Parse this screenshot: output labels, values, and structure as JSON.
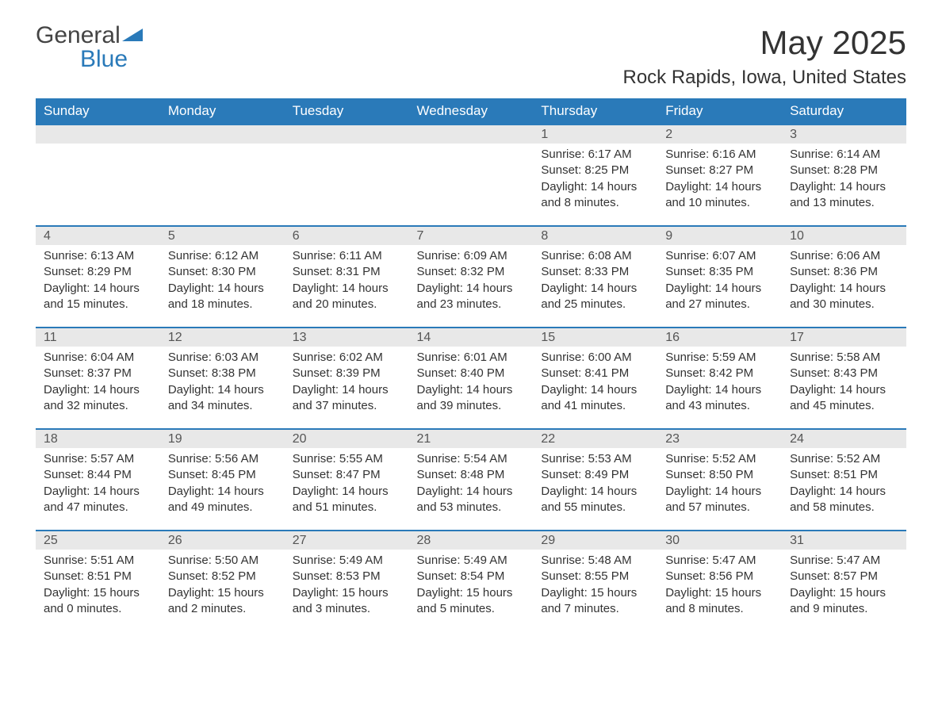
{
  "logo": {
    "word1": "General",
    "word2": "Blue"
  },
  "title": "May 2025",
  "location": "Rock Rapids, Iowa, United States",
  "colors": {
    "header_bg": "#2a7ab9",
    "header_text": "#ffffff",
    "daynum_bg": "#e8e8e8",
    "text": "#333333",
    "logo_blue": "#2a7ab9",
    "row_border": "#2a7ab9",
    "page_bg": "#ffffff"
  },
  "typography": {
    "title_fontsize": 42,
    "location_fontsize": 24,
    "weekday_fontsize": 17,
    "daynum_fontsize": 16,
    "body_fontsize": 15,
    "logo_fontsize": 30
  },
  "weekdays": [
    "Sunday",
    "Monday",
    "Tuesday",
    "Wednesday",
    "Thursday",
    "Friday",
    "Saturday"
  ],
  "labels": {
    "sunrise": "Sunrise",
    "sunset": "Sunset",
    "daylight": "Daylight"
  },
  "weeks": [
    [
      {
        "num": "",
        "empty": true
      },
      {
        "num": "",
        "empty": true
      },
      {
        "num": "",
        "empty": true
      },
      {
        "num": "",
        "empty": true
      },
      {
        "num": "1",
        "sunrise": "6:17 AM",
        "sunset": "8:25 PM",
        "daylight": "14 hours and 8 minutes."
      },
      {
        "num": "2",
        "sunrise": "6:16 AM",
        "sunset": "8:27 PM",
        "daylight": "14 hours and 10 minutes."
      },
      {
        "num": "3",
        "sunrise": "6:14 AM",
        "sunset": "8:28 PM",
        "daylight": "14 hours and 13 minutes."
      }
    ],
    [
      {
        "num": "4",
        "sunrise": "6:13 AM",
        "sunset": "8:29 PM",
        "daylight": "14 hours and 15 minutes."
      },
      {
        "num": "5",
        "sunrise": "6:12 AM",
        "sunset": "8:30 PM",
        "daylight": "14 hours and 18 minutes."
      },
      {
        "num": "6",
        "sunrise": "6:11 AM",
        "sunset": "8:31 PM",
        "daylight": "14 hours and 20 minutes."
      },
      {
        "num": "7",
        "sunrise": "6:09 AM",
        "sunset": "8:32 PM",
        "daylight": "14 hours and 23 minutes."
      },
      {
        "num": "8",
        "sunrise": "6:08 AM",
        "sunset": "8:33 PM",
        "daylight": "14 hours and 25 minutes."
      },
      {
        "num": "9",
        "sunrise": "6:07 AM",
        "sunset": "8:35 PM",
        "daylight": "14 hours and 27 minutes."
      },
      {
        "num": "10",
        "sunrise": "6:06 AM",
        "sunset": "8:36 PM",
        "daylight": "14 hours and 30 minutes."
      }
    ],
    [
      {
        "num": "11",
        "sunrise": "6:04 AM",
        "sunset": "8:37 PM",
        "daylight": "14 hours and 32 minutes."
      },
      {
        "num": "12",
        "sunrise": "6:03 AM",
        "sunset": "8:38 PM",
        "daylight": "14 hours and 34 minutes."
      },
      {
        "num": "13",
        "sunrise": "6:02 AM",
        "sunset": "8:39 PM",
        "daylight": "14 hours and 37 minutes."
      },
      {
        "num": "14",
        "sunrise": "6:01 AM",
        "sunset": "8:40 PM",
        "daylight": "14 hours and 39 minutes."
      },
      {
        "num": "15",
        "sunrise": "6:00 AM",
        "sunset": "8:41 PM",
        "daylight": "14 hours and 41 minutes."
      },
      {
        "num": "16",
        "sunrise": "5:59 AM",
        "sunset": "8:42 PM",
        "daylight": "14 hours and 43 minutes."
      },
      {
        "num": "17",
        "sunrise": "5:58 AM",
        "sunset": "8:43 PM",
        "daylight": "14 hours and 45 minutes."
      }
    ],
    [
      {
        "num": "18",
        "sunrise": "5:57 AM",
        "sunset": "8:44 PM",
        "daylight": "14 hours and 47 minutes."
      },
      {
        "num": "19",
        "sunrise": "5:56 AM",
        "sunset": "8:45 PM",
        "daylight": "14 hours and 49 minutes."
      },
      {
        "num": "20",
        "sunrise": "5:55 AM",
        "sunset": "8:47 PM",
        "daylight": "14 hours and 51 minutes."
      },
      {
        "num": "21",
        "sunrise": "5:54 AM",
        "sunset": "8:48 PM",
        "daylight": "14 hours and 53 minutes."
      },
      {
        "num": "22",
        "sunrise": "5:53 AM",
        "sunset": "8:49 PM",
        "daylight": "14 hours and 55 minutes."
      },
      {
        "num": "23",
        "sunrise": "5:52 AM",
        "sunset": "8:50 PM",
        "daylight": "14 hours and 57 minutes."
      },
      {
        "num": "24",
        "sunrise": "5:52 AM",
        "sunset": "8:51 PM",
        "daylight": "14 hours and 58 minutes."
      }
    ],
    [
      {
        "num": "25",
        "sunrise": "5:51 AM",
        "sunset": "8:51 PM",
        "daylight": "15 hours and 0 minutes."
      },
      {
        "num": "26",
        "sunrise": "5:50 AM",
        "sunset": "8:52 PM",
        "daylight": "15 hours and 2 minutes."
      },
      {
        "num": "27",
        "sunrise": "5:49 AM",
        "sunset": "8:53 PM",
        "daylight": "15 hours and 3 minutes."
      },
      {
        "num": "28",
        "sunrise": "5:49 AM",
        "sunset": "8:54 PM",
        "daylight": "15 hours and 5 minutes."
      },
      {
        "num": "29",
        "sunrise": "5:48 AM",
        "sunset": "8:55 PM",
        "daylight": "15 hours and 7 minutes."
      },
      {
        "num": "30",
        "sunrise": "5:47 AM",
        "sunset": "8:56 PM",
        "daylight": "15 hours and 8 minutes."
      },
      {
        "num": "31",
        "sunrise": "5:47 AM",
        "sunset": "8:57 PM",
        "daylight": "15 hours and 9 minutes."
      }
    ]
  ]
}
